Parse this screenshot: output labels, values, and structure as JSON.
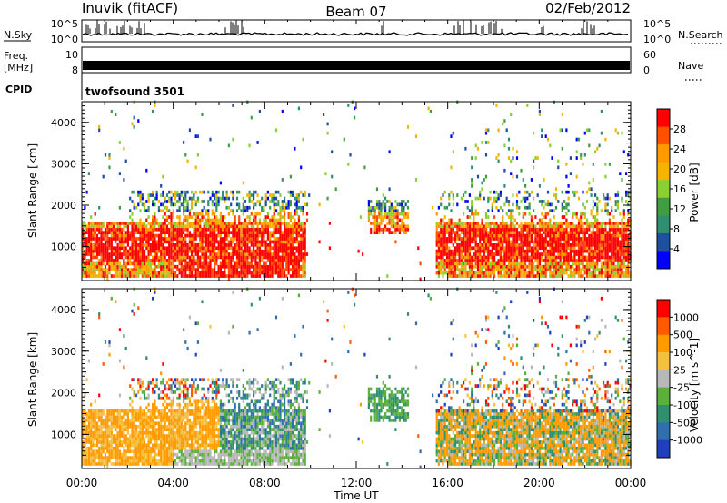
{
  "header": {
    "station": "Inuvik (fitACF)",
    "beam": "Beam 07",
    "date": "02/Feb/2012"
  },
  "panels": {
    "nsky": {
      "label": "N.Sky",
      "tick_top": "10^5",
      "tick_bottom": "10^0",
      "right_label": "N.Search",
      "right_tick_top": "10^5",
      "right_tick_bottom": "10^0"
    },
    "freq": {
      "label_line1": "Freq.",
      "label_line2": "[MHz]",
      "tick_top": "10",
      "tick_bottom": "8",
      "right_label": "Nave",
      "right_tick_top": "60",
      "right_tick_bottom": "0"
    },
    "cpid": {
      "label": "CPID",
      "value": "twofsound 3501"
    }
  },
  "colors": {
    "red": "#ff0000",
    "orange_red": "#ff5000",
    "orange": "#ff9a00",
    "yellow_orange": "#f5b400",
    "green_light": "#8ad033",
    "green": "#3f9e3f",
    "teal": "#2f8f6f",
    "blue_dark": "#1f4f9f",
    "blue": "#0000ff",
    "grey": "#bbbbbb"
  },
  "chart_data": [
    {
      "type": "heatmap",
      "name": "power",
      "ylabel": "Slant Range [km]",
      "ylim": [
        180,
        4500
      ],
      "yticks": [
        "1000",
        "2000",
        "3000",
        "4000"
      ],
      "colorbar": {
        "label": "Power [dB]",
        "ticks": [
          "4",
          "8",
          "12",
          "16",
          "20",
          "24",
          "28"
        ],
        "range": [
          0,
          30
        ],
        "colors": [
          "#0000ff",
          "#1f4f9f",
          "#2f8f6f",
          "#3f9e3f",
          "#8ad033",
          "#f5b400",
          "#ff9a00",
          "#ff5000",
          "#ff0000"
        ]
      },
      "x_ticks": [
        "00:00",
        "04:00",
        "08:00",
        "12:00",
        "16:00",
        "20:00",
        "00:00"
      ]
    },
    {
      "type": "heatmap",
      "name": "velocity",
      "ylabel": "Slant Range [km]",
      "ylim": [
        180,
        4500
      ],
      "yticks": [
        "1000",
        "2000",
        "3000",
        "4000"
      ],
      "colorbar": {
        "label": "Velocity [m s^-1]",
        "ticks": [
          "1000",
          "500",
          "100",
          "25",
          "-25",
          "-100",
          "-500",
          "-1000"
        ],
        "colors": [
          "#1f3fbf",
          "#2f6faf",
          "#2f8f6f",
          "#5ab03a",
          "#b8b8b8",
          "#f5c040",
          "#ff9a00",
          "#ff5a00",
          "#ff0000"
        ]
      },
      "x_ticks": [
        "00:00",
        "04:00",
        "08:00",
        "12:00",
        "16:00",
        "20:00",
        "00:00"
      ],
      "xlabel": "Time UT"
    }
  ]
}
